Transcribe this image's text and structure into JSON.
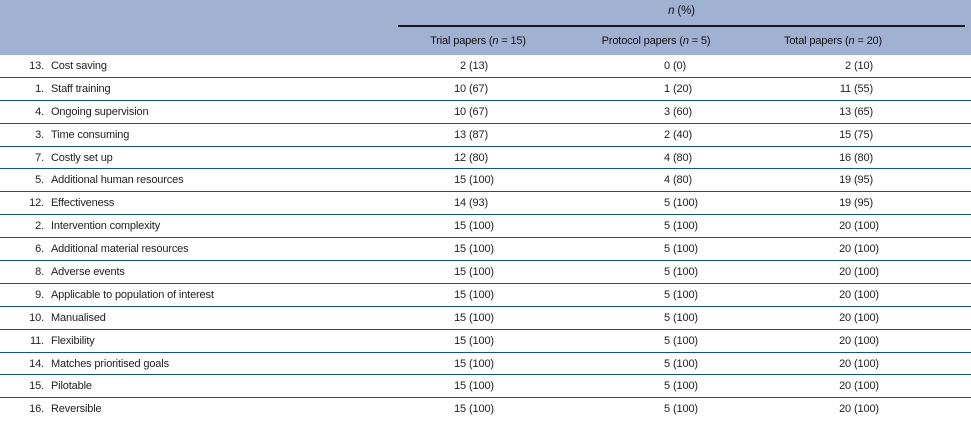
{
  "table": {
    "group_header": "n (%)",
    "columns": [
      "Trial papers (n = 15)",
      "Protocol papers (n = 5)",
      "Total papers (n = 20)"
    ],
    "rows": [
      {
        "num": "13.",
        "label": "Cost saving",
        "values": [
          "2 (13)",
          "0 (0)",
          "2 (10)"
        ]
      },
      {
        "num": "1.",
        "label": "Staff training",
        "values": [
          "10 (67)",
          "1 (20)",
          "11 (55)"
        ]
      },
      {
        "num": "4.",
        "label": "Ongoing supervision",
        "values": [
          "10 (67)",
          "3 (60)",
          "13 (65)"
        ]
      },
      {
        "num": "3.",
        "label": "Time consuming",
        "values": [
          "13 (87)",
          "2 (40)",
          "15 (75)"
        ]
      },
      {
        "num": "7.",
        "label": "Costly set up",
        "values": [
          "12 (80)",
          "4 (80)",
          "16 (80)"
        ]
      },
      {
        "num": "5.",
        "label": "Additional human resources",
        "values": [
          "15 (100)",
          "4 (80)",
          "19 (95)"
        ]
      },
      {
        "num": "12.",
        "label": "Effectiveness",
        "values": [
          "14 (93)",
          "5 (100)",
          "19 (95)"
        ]
      },
      {
        "num": "2.",
        "label": "Intervention complexity",
        "values": [
          "15 (100)",
          "5 (100)",
          "20 (100)"
        ]
      },
      {
        "num": "6.",
        "label": "Additional material resources",
        "values": [
          "15 (100)",
          "5 (100)",
          "20 (100)"
        ]
      },
      {
        "num": "8.",
        "label": "Adverse events",
        "values": [
          "15 (100)",
          "5 (100)",
          "20 (100)"
        ]
      },
      {
        "num": "9.",
        "label": "Applicable to population of interest",
        "values": [
          "15 (100)",
          "5 (100)",
          "20 (100)"
        ]
      },
      {
        "num": "10.",
        "label": "Manualised",
        "values": [
          "15 (100)",
          "5 (100)",
          "20 (100)"
        ]
      },
      {
        "num": "11.",
        "label": "Flexibility",
        "values": [
          "15 (100)",
          "5 (100)",
          "20 (100)"
        ]
      },
      {
        "num": "14.",
        "label": "Matches prioritised goals",
        "values": [
          "15 (100)",
          "5 (100)",
          "20 (100)"
        ]
      },
      {
        "num": "15.",
        "label": "Pilotable",
        "values": [
          "15 (100)",
          "5 (100)",
          "20 (100)"
        ]
      },
      {
        "num": "16.",
        "label": "Reversible",
        "values": [
          "15 (100)",
          "5 (100)",
          "20 (100)"
        ]
      }
    ],
    "colors": {
      "header_bg": "#a1b1d2",
      "rule": "#14528c",
      "header_rule": "#1a1a1a",
      "text": "#1f1f1f"
    }
  }
}
